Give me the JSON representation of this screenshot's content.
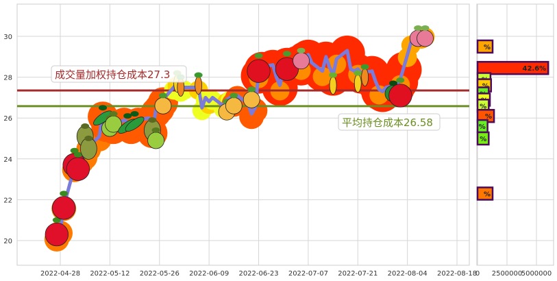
{
  "chart_data": [
    {
      "type": "line",
      "title": "",
      "xlabel": "",
      "ylabel": "",
      "ylim": [
        18.8,
        31.6
      ],
      "xlim": [
        "2022-04-16",
        "2022-08-21"
      ],
      "grid": true,
      "x_ticks": [
        "2022-04-28",
        "2022-05-12",
        "2022-05-26",
        "2022-06-09",
        "2022-06-23",
        "2022-07-07",
        "2022-07-21",
        "2022-08-04",
        "2022-08-18"
      ],
      "y_ticks": [
        20,
        22,
        24,
        26,
        28,
        30
      ],
      "line_color": "#7b7bdc",
      "series": [
        {
          "values": [
            [
              "2022-04-27",
              20.2
            ],
            [
              "2022-04-28",
              20.5
            ],
            [
              "2022-04-29",
              21.7
            ],
            [
              "2022-05-02",
              23.6
            ],
            [
              "2022-05-03",
              23.9
            ],
            [
              "2022-05-04",
              24.0
            ],
            [
              "2022-05-05",
              24.2
            ],
            [
              "2022-05-06",
              24.6
            ],
            [
              "2022-05-09",
              25.1
            ],
            [
              "2022-05-10",
              26.2
            ],
            [
              "2022-05-11",
              25.7
            ],
            [
              "2022-05-12",
              25.8
            ],
            [
              "2022-05-13",
              25.6
            ],
            [
              "2022-05-16",
              25.9
            ],
            [
              "2022-05-17",
              25.8
            ],
            [
              "2022-05-18",
              25.6
            ],
            [
              "2022-05-19",
              25.7
            ],
            [
              "2022-05-20",
              25.9
            ],
            [
              "2022-05-23",
              26.0
            ],
            [
              "2022-05-24",
              25.4
            ],
            [
              "2022-05-25",
              26.4
            ],
            [
              "2022-05-26",
              26.6
            ],
            [
              "2022-05-27",
              26.9
            ],
            [
              "2022-05-30",
              27.5
            ],
            [
              "2022-05-31",
              27.7
            ],
            [
              "2022-06-01",
              27.4
            ],
            [
              "2022-06-02",
              27.5
            ],
            [
              "2022-06-06",
              27.5
            ],
            [
              "2022-06-07",
              26.5
            ],
            [
              "2022-06-08",
              27.0
            ],
            [
              "2022-06-09",
              26.8
            ],
            [
              "2022-06-10",
              27.0
            ],
            [
              "2022-06-13",
              26.6
            ],
            [
              "2022-06-14",
              26.9
            ],
            [
              "2022-06-15",
              27.0
            ],
            [
              "2022-06-16",
              26.8
            ],
            [
              "2022-06-17",
              27.1
            ],
            [
              "2022-06-20",
              26.7
            ],
            [
              "2022-06-21",
              26.2
            ],
            [
              "2022-06-22",
              26.5
            ],
            [
              "2022-06-23",
              28.2
            ],
            [
              "2022-06-24",
              28.5
            ],
            [
              "2022-06-27",
              28.6
            ],
            [
              "2022-06-28",
              28.0
            ],
            [
              "2022-06-29",
              27.6
            ],
            [
              "2022-06-30",
              28.3
            ],
            [
              "2022-07-01",
              28.7
            ],
            [
              "2022-07-04",
              28.8
            ],
            [
              "2022-07-05",
              28.6
            ],
            [
              "2022-07-06",
              29.0
            ],
            [
              "2022-07-07",
              29.1
            ],
            [
              "2022-07-08",
              28.7
            ],
            [
              "2022-07-11",
              28.3
            ],
            [
              "2022-07-12",
              29.0
            ],
            [
              "2022-07-13",
              28.5
            ],
            [
              "2022-07-14",
              28.1
            ],
            [
              "2022-07-15",
              28.9
            ],
            [
              "2022-07-18",
              29.3
            ],
            [
              "2022-07-19",
              28.4
            ],
            [
              "2022-07-20",
              28.3
            ],
            [
              "2022-07-21",
              28.4
            ],
            [
              "2022-07-22",
              28.2
            ],
            [
              "2022-07-25",
              28.3
            ],
            [
              "2022-07-26",
              27.8
            ],
            [
              "2022-07-27",
              27.4
            ],
            [
              "2022-07-28",
              27.3
            ],
            [
              "2022-07-29",
              27.5
            ],
            [
              "2022-08-01",
              27.6
            ],
            [
              "2022-08-02",
              27.9
            ],
            [
              "2022-08-03",
              28.5
            ],
            [
              "2022-08-04",
              29.1
            ],
            [
              "2022-08-05",
              29.7
            ],
            [
              "2022-08-08",
              30.0
            ],
            [
              "2022-08-09",
              30.1
            ]
          ]
        }
      ],
      "hlines": [
        {
          "label": "成交量加权持仓成本27.3",
          "value": 27.35,
          "color": "#a52a2a"
        },
        {
          "label": "平均持仓成本26.58",
          "value": 26.58,
          "color": "#6b8e23"
        }
      ],
      "markers": [
        {
          "date": "2022-04-27",
          "price": 20.3,
          "fruit": "strawberry"
        },
        {
          "date": "2022-04-29",
          "price": 21.6,
          "fruit": "strawberry"
        },
        {
          "date": "2022-05-02",
          "price": 23.7,
          "fruit": "strawberry"
        },
        {
          "date": "2022-05-03",
          "price": 23.5,
          "fruit": "strawberry"
        },
        {
          "date": "2022-05-05",
          "price": 25.1,
          "fruit": "pear"
        },
        {
          "date": "2022-05-06",
          "price": 24.5,
          "fruit": "pear"
        },
        {
          "date": "2022-05-10",
          "price": 26.0,
          "fruit": "peas"
        },
        {
          "date": "2022-05-12",
          "price": 25.5,
          "fruit": "kiwi"
        },
        {
          "date": "2022-05-13",
          "price": 25.7,
          "fruit": "kiwi"
        },
        {
          "date": "2022-05-17",
          "price": 25.6,
          "fruit": "peas"
        },
        {
          "date": "2022-05-19",
          "price": 25.7,
          "fruit": "peas"
        },
        {
          "date": "2022-05-24",
          "price": 25.4,
          "fruit": "pear"
        },
        {
          "date": "2022-05-25",
          "price": 24.9,
          "fruit": "kiwi"
        },
        {
          "date": "2022-05-27",
          "price": 26.6,
          "fruit": "pineapple"
        },
        {
          "date": "2022-05-31",
          "price": 27.7,
          "fruit": "corn"
        },
        {
          "date": "2022-06-01",
          "price": 27.5,
          "fruit": "carrot"
        },
        {
          "date": "2022-06-06",
          "price": 27.6,
          "fruit": "carrot"
        },
        {
          "date": "2022-06-14",
          "price": 26.3,
          "fruit": "pineapple"
        },
        {
          "date": "2022-06-16",
          "price": 26.6,
          "fruit": "pineapple"
        },
        {
          "date": "2022-06-21",
          "price": 26.9,
          "fruit": "pineapple"
        },
        {
          "date": "2022-06-23",
          "price": 28.3,
          "fruit": "apple"
        },
        {
          "date": "2022-07-01",
          "price": 28.4,
          "fruit": "apple"
        },
        {
          "date": "2022-07-05",
          "price": 28.8,
          "fruit": "radish"
        },
        {
          "date": "2022-07-14",
          "price": 27.6,
          "fruit": "corn"
        },
        {
          "date": "2022-07-21",
          "price": 27.7,
          "fruit": "corn"
        },
        {
          "date": "2022-07-23",
          "price": 28.0,
          "fruit": "carrot"
        },
        {
          "date": "2022-07-31",
          "price": 27.2,
          "fruit": "watermelon"
        },
        {
          "date": "2022-08-02",
          "price": 27.1,
          "fruit": "apple"
        },
        {
          "date": "2022-08-07",
          "price": 29.9,
          "fruit": "radish"
        },
        {
          "date": "2022-08-09",
          "price": 29.9,
          "fruit": "radish"
        }
      ]
    },
    {
      "type": "bar",
      "orientation": "horizontal",
      "xlim": [
        0,
        6500000
      ],
      "x_ticks": [
        0,
        2500000,
        5000000
      ],
      "x_tick_labels": [
        "0",
        "2500000",
        "5000000"
      ],
      "bars": [
        {
          "price": 29.5,
          "volume": 1280000,
          "label": "%",
          "color": "#ffa500"
        },
        {
          "price": 28.45,
          "volume": 6000000,
          "label": "42.6%",
          "color": "#ff2a00"
        },
        {
          "price": 27.9,
          "volume": 1100000,
          "label": "%",
          "color": "#ccff33"
        },
        {
          "price": 27.6,
          "volume": 1150000,
          "label": "%",
          "color": "#ffcc00"
        },
        {
          "price": 27.2,
          "volume": 950000,
          "label": "%",
          "color": "#66ee22"
        },
        {
          "price": 26.9,
          "volume": 1050000,
          "label": "%",
          "color": "#eeff22"
        },
        {
          "price": 26.6,
          "volume": 950000,
          "label": "%",
          "color": "#ccff33"
        },
        {
          "price": 26.1,
          "volume": 1400000,
          "label": "%",
          "color": "#ff5500"
        },
        {
          "price": 25.6,
          "volume": 850000,
          "label": "%",
          "color": "#66ee22"
        },
        {
          "price": 25.0,
          "volume": 950000,
          "label": "%",
          "color": "#77ee11"
        },
        {
          "price": 22.3,
          "volume": 1280000,
          "label": "%",
          "color": "#ff7700"
        }
      ]
    }
  ]
}
